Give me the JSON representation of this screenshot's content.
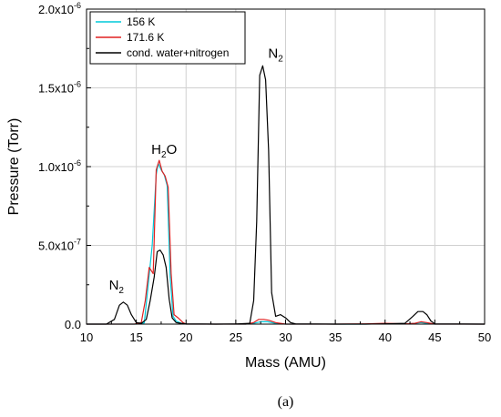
{
  "chart_data": {
    "type": "line",
    "title": "",
    "xlabel": "Mass (AMU)",
    "ylabel": "Pressure (Torr)",
    "xlim": [
      10,
      50
    ],
    "ylim": [
      0,
      2e-06
    ],
    "x_ticks": [
      10,
      15,
      20,
      25,
      30,
      35,
      40,
      45,
      50
    ],
    "x_tick_labels": [
      "10",
      "15",
      "20",
      "25",
      "30",
      "35",
      "40",
      "45",
      "50"
    ],
    "y_ticks": [
      0,
      5e-07,
      1e-06,
      1.5e-06,
      2e-06
    ],
    "y_tick_labels": [
      "0.0",
      "5.0x10",
      "1.0x10",
      "1.5x10",
      "2.0x10"
    ],
    "y_tick_exponents": [
      "",
      "-7",
      "-6",
      "-6",
      "-6"
    ],
    "grid": true,
    "legend_position": "top-left",
    "panel_label": "(a)",
    "annotations": [
      {
        "text": "N",
        "subscript": "2",
        "x": 13.0,
        "y": 2.2e-07
      },
      {
        "text": "H",
        "subscript": "2",
        "suffix": "O",
        "x": 17.8,
        "y": 1.08e-06
      },
      {
        "text": "N",
        "subscript": "2",
        "x": 29.0,
        "y": 1.69e-06
      }
    ],
    "series": [
      {
        "name": "156 K",
        "color": "#00c8d8",
        "x": [
          10,
          13,
          14,
          15,
          15.8,
          16.2,
          16.6,
          17.0,
          17.2,
          17.5,
          17.8,
          18.1,
          18.4,
          18.7,
          19.0,
          19.5,
          20,
          26,
          26.8,
          27.5,
          28.2,
          29,
          30,
          35,
          38,
          40,
          42,
          43,
          43.6,
          44.2,
          45,
          50
        ],
        "values": [
          0,
          0,
          0,
          0,
          8e-09,
          2.5e-07,
          5e-07,
          9.5e-07,
          1.02e-06,
          9.8e-07,
          9.5e-07,
          8.8e-07,
          3e-07,
          5e-08,
          2e-08,
          5e-09,
          0,
          0,
          5e-09,
          1.5e-08,
          1.5e-08,
          5e-09,
          0,
          0,
          0,
          2e-09,
          2e-09,
          5e-09,
          1e-08,
          5e-09,
          0,
          0
        ]
      },
      {
        "name": "171.6 K",
        "color": "#e02020",
        "x": [
          10,
          13,
          14,
          14.8,
          15.5,
          15.9,
          16.3,
          16.7,
          17.0,
          17.3,
          17.6,
          17.9,
          18.2,
          18.5,
          18.8,
          19.2,
          19.7,
          20,
          26,
          26.8,
          27.3,
          27.8,
          28.3,
          29,
          30,
          35,
          38,
          40,
          42,
          43,
          43.6,
          44.2,
          45,
          50
        ],
        "values": [
          0,
          0,
          0,
          0,
          1e-08,
          1.5e-07,
          3.6e-07,
          3.2e-07,
          9.8e-07,
          1.04e-06,
          9.7e-07,
          9.4e-07,
          8.7e-07,
          3.2e-07,
          6e-08,
          4e-08,
          1e-08,
          0,
          0,
          1e-08,
          3e-08,
          3e-08,
          2.5e-08,
          1e-08,
          0,
          0,
          2e-09,
          5e-09,
          2e-09,
          5e-09,
          1.5e-08,
          1e-08,
          0,
          0
        ]
      },
      {
        "name": "cond. water+nitrogen",
        "color": "#000000",
        "x": [
          10,
          12,
          12.8,
          13.3,
          13.7,
          14.1,
          14.5,
          15.0,
          15.5,
          16.0,
          16.4,
          16.8,
          17.1,
          17.4,
          17.7,
          18.0,
          18.3,
          18.6,
          19.0,
          19.5,
          20,
          23,
          25,
          26.4,
          26.8,
          27.1,
          27.4,
          27.7,
          28.0,
          28.3,
          28.6,
          29.0,
          29.5,
          30.0,
          30.5,
          31,
          33,
          35,
          38,
          40,
          42,
          42.8,
          43.3,
          43.8,
          44.2,
          44.6,
          45,
          50
        ],
        "values": [
          0,
          0,
          3e-08,
          1.2e-07,
          1.4e-07,
          1.2e-07,
          6e-08,
          1e-08,
          5e-09,
          3e-08,
          1.5e-07,
          3e-07,
          4.6e-07,
          4.7e-07,
          4.4e-07,
          3.6e-07,
          1.6e-07,
          4e-08,
          1e-08,
          5e-09,
          2e-09,
          0,
          1e-09,
          5e-09,
          1.5e-07,
          6.5e-07,
          1.58e-06,
          1.64e-06,
          1.55e-06,
          1.1e-06,
          2e-07,
          5e-08,
          6e-08,
          4e-08,
          1e-08,
          2e-09,
          1e-09,
          0,
          0,
          2e-09,
          5e-09,
          5e-08,
          8e-08,
          8e-08,
          6e-08,
          2e-08,
          2e-09,
          0
        ]
      }
    ]
  }
}
